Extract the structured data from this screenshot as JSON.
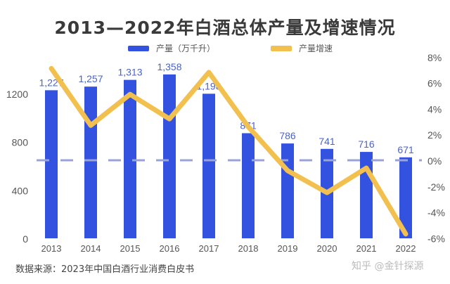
{
  "chart_data": {
    "type": "bar+line",
    "title": "2013—2022年白酒总体产量及增速情况",
    "categories": [
      "2013",
      "2014",
      "2015",
      "2016",
      "2017",
      "2018",
      "2019",
      "2020",
      "2021",
      "2022"
    ],
    "series": [
      {
        "name": "产量（万千升）",
        "type": "bar",
        "axis": "left",
        "color": "#3452e0",
        "values": [
          1227,
          1257,
          1313,
          1358,
          1198,
          871,
          786,
          741,
          716,
          671
        ],
        "labels": [
          "1,227",
          "1,257",
          "1,313",
          "1,358",
          "1,198",
          "871",
          "786",
          "741",
          "716",
          "671"
        ]
      },
      {
        "name": "产量增速",
        "type": "line",
        "axis": "right",
        "color": "#f2c04e",
        "values": [
          7.1,
          2.7,
          5.1,
          3.2,
          6.8,
          2.6,
          -0.8,
          -2.5,
          -0.6,
          -5.7
        ]
      }
    ],
    "left_axis": {
      "ylim": [
        0,
        1500
      ],
      "ticks": [
        0,
        400,
        800,
        1200
      ],
      "tick_labels": [
        "0",
        "400",
        "800",
        "1200"
      ]
    },
    "right_axis": {
      "ylim": [
        -6,
        8
      ],
      "ticks": [
        -6,
        -4,
        -2,
        0,
        2,
        4,
        6,
        8
      ],
      "tick_labels": [
        "-6%",
        "-4%",
        "-2%",
        "0%",
        "2%",
        "4%",
        "6%",
        "8%"
      ]
    },
    "zero_line": {
      "style": "dashed",
      "color": "#9aa3d8"
    },
    "legend_placement": "top",
    "grid": false
  },
  "source": "数据来源：2023年中国白酒行业消费白皮书",
  "watermark": "知乎 @金针探源"
}
